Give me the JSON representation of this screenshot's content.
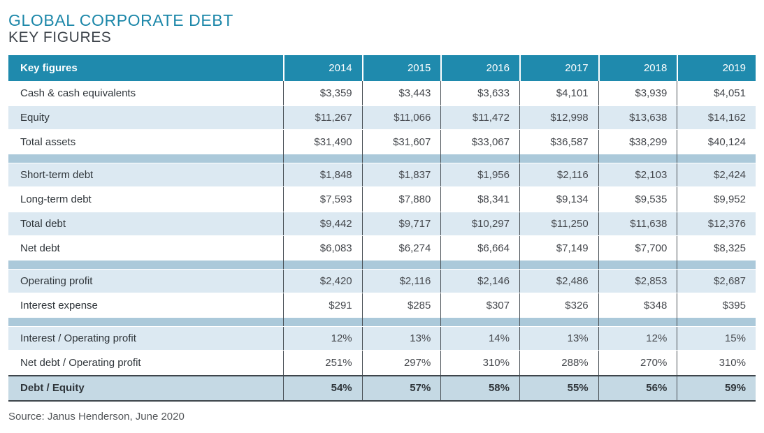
{
  "title": "GLOBAL CORPORATE DEBT",
  "subtitle": "KEY FIGURES",
  "source": "Source: Janus Henderson, June 2020",
  "colors": {
    "header_bg": "#1f8aad",
    "shaded_row_bg": "#dce9f2",
    "separator_strip": "#abc9da",
    "total_row_bg": "#c5d9e4",
    "divider_line": "#4a5157",
    "total_row_border": "#3e464c",
    "title_teal": "#1c87a9",
    "subtitle_gray": "#3e444b"
  },
  "chart_data": {
    "type": "table",
    "title": "GLOBAL CORPORATE DEBT — KEY FIGURES",
    "columns": [
      "Key figures",
      "2014",
      "2015",
      "2016",
      "2017",
      "2018",
      "2019"
    ],
    "rows": [
      [
        "Cash & cash equivalents",
        "$3,359",
        "$3,443",
        "$3,633",
        "$4,101",
        "$3,939",
        "$4,051"
      ],
      [
        "Equity",
        "$11,267",
        "$11,066",
        "$11,472",
        "$12,998",
        "$13,638",
        "$14,162"
      ],
      [
        "Total assets",
        "$31,490",
        "$31,607",
        "$33,067",
        "$36,587",
        "$38,299",
        "$40,124"
      ],
      [
        "Short-term debt",
        "$1,848",
        "$1,837",
        "$1,956",
        "$2,116",
        "$2,103",
        "$2,424"
      ],
      [
        "Long-term debt",
        "$7,593",
        "$7,880",
        "$8,341",
        "$9,134",
        "$9,535",
        "$9,952"
      ],
      [
        "Total debt",
        "$9,442",
        "$9,717",
        "$10,297",
        "$11,250",
        "$11,638",
        "$12,376"
      ],
      [
        "Net debt",
        "$6,083",
        "$6,274",
        "$6,664",
        "$7,149",
        "$7,700",
        "$8,325"
      ],
      [
        "Operating profit",
        "$2,420",
        "$2,116",
        "$2,146",
        "$2,486",
        "$2,853",
        "$2,687"
      ],
      [
        "Interest expense",
        "$291",
        "$285",
        "$307",
        "$326",
        "$348",
        "$395"
      ],
      [
        "Interest / Operating profit",
        "12%",
        "13%",
        "14%",
        "13%",
        "12%",
        "15%"
      ],
      [
        "Net debt / Operating profit",
        "251%",
        "297%",
        "310%",
        "288%",
        "270%",
        "310%"
      ],
      [
        "Debt / Equity",
        "54%",
        "57%",
        "58%",
        "55%",
        "56%",
        "59%"
      ]
    ],
    "sections": [
      [
        0,
        1,
        2
      ],
      [
        3,
        4,
        5,
        6
      ],
      [
        7,
        8
      ],
      [
        9,
        10,
        11
      ]
    ],
    "total_row_index": 11,
    "source": "Source: Janus Henderson, June 2020"
  }
}
